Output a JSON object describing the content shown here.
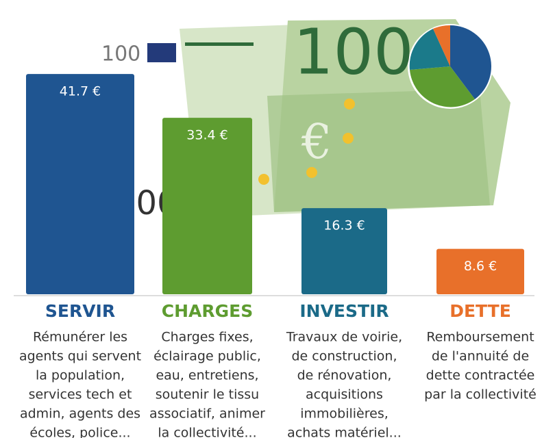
{
  "chart_data": {
    "type": "bar",
    "categories": [
      "SERVIR",
      "CHARGES",
      "INVESTIR",
      "DETTE"
    ],
    "values": [
      41.7,
      33.4,
      16.3,
      8.6
    ],
    "value_labels": [
      "41.7 €",
      "33.4 €",
      "16.3 €",
      "8.6 €"
    ],
    "colors": [
      "#1f5591",
      "#5e9c30",
      "#1b6a88",
      "#e8702a"
    ],
    "descriptions": [
      [
        "Rémunérer les",
        "agents qui servent",
        "la population,",
        "services tech et",
        "admin, agents des",
        "écoles, police..."
      ],
      [
        "Charges fixes,",
        "éclairage public,",
        "eau, entretiens,",
        "soutenir le tissu",
        "associatif, animer",
        "la collectivité..."
      ],
      [
        "Travaux de voirie,",
        "de construction,",
        "de rénovation,",
        "acquisitions",
        "immobilières,",
        "achats matériel..."
      ],
      [
        "Remboursement",
        "de l'annuité de",
        "dette contractée",
        "par la collectivité"
      ]
    ]
  },
  "banknote": {
    "labels": [
      "100",
      "100",
      "100"
    ]
  }
}
